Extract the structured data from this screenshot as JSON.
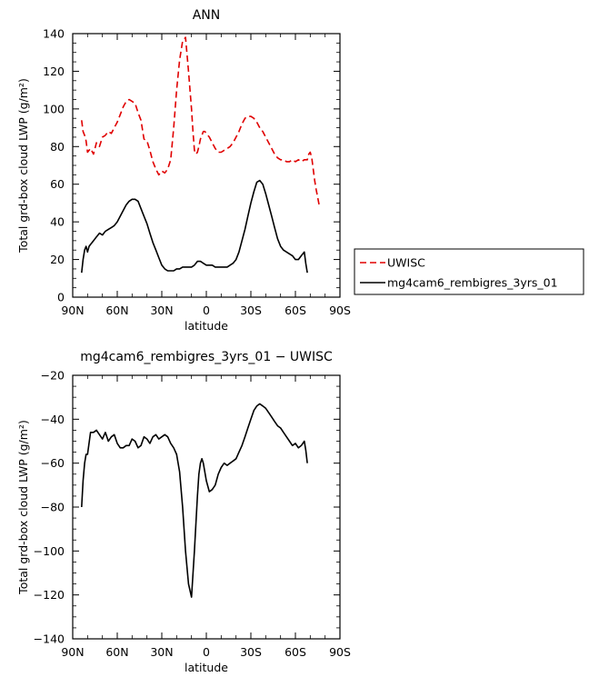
{
  "chart_data": [
    {
      "type": "line",
      "title": "ANN",
      "xlabel": "latitude",
      "ylabel": "Total grd-box cloud LWP (g/m²)",
      "xlim": [
        90,
        -90
      ],
      "ylim": [
        0,
        140
      ],
      "xticks": [
        90,
        60,
        30,
        0,
        -30,
        -60,
        -90
      ],
      "xtick_labels": [
        "90N",
        "60N",
        "30N",
        "0",
        "30S",
        "60S",
        "90S"
      ],
      "yticks": [
        0,
        20,
        40,
        60,
        80,
        100,
        120,
        140
      ],
      "ytick_labels": [
        "0",
        "20",
        "40",
        "60",
        "80",
        "100",
        "120",
        "140"
      ],
      "grid": false,
      "legend": "right",
      "series": [
        {
          "name": "UWISC",
          "color": "#e00000",
          "dash": true,
          "x": [
            84,
            83,
            82,
            81,
            80,
            78,
            76,
            74,
            72,
            70,
            68,
            66,
            64,
            62,
            60,
            58,
            56,
            54,
            52,
            50,
            48,
            46,
            44,
            42,
            40,
            38,
            36,
            34,
            32,
            30,
            28,
            26,
            24,
            22,
            20,
            18,
            16,
            14,
            12,
            10,
            9,
            8,
            7,
            6,
            5,
            4,
            3,
            2,
            1,
            0,
            -1,
            -2,
            -4,
            -6,
            -8,
            -10,
            -12,
            -14,
            -16,
            -18,
            -20,
            -22,
            -24,
            -26,
            -28,
            -30,
            -32,
            -34,
            -36,
            -38,
            -40,
            -42,
            -44,
            -46,
            -48,
            -50,
            -52,
            -54,
            -56,
            -58,
            -60,
            -62,
            -64,
            -66,
            -68,
            -69,
            -70,
            -71,
            -72,
            -73,
            -74,
            -75,
            -76
          ],
          "y": [
            94,
            88,
            86,
            83,
            77,
            79,
            76,
            82,
            80,
            85,
            86,
            88,
            87,
            90,
            93,
            97,
            101,
            104,
            105,
            104,
            103,
            98,
            94,
            84,
            83,
            78,
            72,
            68,
            65,
            67,
            66,
            68,
            73,
            90,
            110,
            126,
            136,
            138,
            120,
            100,
            88,
            78,
            76,
            77,
            80,
            84,
            86,
            88,
            88,
            87,
            86,
            85,
            82,
            79,
            77,
            77,
            78,
            79,
            80,
            82,
            85,
            88,
            92,
            95,
            96,
            96,
            95,
            93,
            90,
            88,
            85,
            82,
            79,
            76,
            74,
            73,
            73,
            72,
            72,
            73,
            72,
            73,
            72,
            73,
            73,
            76,
            77,
            74,
            68,
            62,
            57,
            53,
            49
          ]
        },
        {
          "name": "mg4cam6_rembigres_3yrs_01",
          "color": "#000000",
          "dash": false,
          "x": [
            84,
            83,
            82,
            81,
            80,
            79,
            78,
            76,
            74,
            72,
            70,
            68,
            66,
            64,
            62,
            60,
            58,
            56,
            54,
            52,
            50,
            48,
            46,
            44,
            42,
            40,
            38,
            36,
            34,
            32,
            30,
            28,
            26,
            24,
            22,
            20,
            18,
            16,
            14,
            12,
            10,
            8,
            6,
            4,
            2,
            0,
            -2,
            -4,
            -6,
            -8,
            -10,
            -12,
            -14,
            -16,
            -18,
            -20,
            -22,
            -24,
            -26,
            -28,
            -30,
            -32,
            -34,
            -36,
            -38,
            -40,
            -42,
            -44,
            -46,
            -48,
            -50,
            -52,
            -54,
            -56,
            -58,
            -60,
            -62,
            -64,
            -66,
            -67,
            -68
          ],
          "y": [
            13,
            20,
            25,
            27,
            24,
            27,
            28,
            30,
            32,
            34,
            33,
            35,
            36,
            37,
            38,
            40,
            43,
            46,
            49,
            51,
            52,
            52,
            51,
            47,
            43,
            39,
            34,
            29,
            25,
            21,
            17,
            15,
            14,
            14,
            14,
            15,
            15,
            16,
            16,
            16,
            16,
            17,
            19,
            19,
            18,
            17,
            17,
            17,
            16,
            16,
            16,
            16,
            16,
            17,
            18,
            20,
            24,
            30,
            36,
            43,
            50,
            56,
            61,
            62,
            60,
            55,
            49,
            43,
            37,
            31,
            27,
            25,
            24,
            23,
            22,
            20,
            20,
            22,
            24,
            18,
            13
          ]
        }
      ]
    },
    {
      "type": "line",
      "title": "mg4cam6_rembigres_3yrs_01 − UWISC",
      "xlabel": "latitude",
      "ylabel": "Total grd-box cloud LWP (g/m²)",
      "xlim": [
        90,
        -90
      ],
      "ylim": [
        -140,
        -20
      ],
      "xticks": [
        90,
        60,
        30,
        0,
        -30,
        -60,
        -90
      ],
      "xtick_labels": [
        "90N",
        "60N",
        "30N",
        "0",
        "30S",
        "60S",
        "90S"
      ],
      "yticks": [
        -140,
        -120,
        -100,
        -80,
        -60,
        -40,
        -20
      ],
      "ytick_labels": [
        "−140",
        "−120",
        "−100",
        "−80",
        "−60",
        "−40",
        "−20"
      ],
      "grid": false,
      "series": [
        {
          "color": "#000000",
          "dash": false,
          "x": [
            84,
            83,
            82,
            81,
            80,
            78,
            76,
            74,
            72,
            70,
            68,
            66,
            64,
            62,
            60,
            58,
            56,
            54,
            52,
            50,
            48,
            46,
            44,
            42,
            40,
            38,
            36,
            34,
            32,
            30,
            28,
            26,
            24,
            22,
            20,
            18,
            16,
            14,
            12,
            10,
            8,
            6,
            5,
            4,
            3,
            2,
            0,
            -2,
            -4,
            -6,
            -8,
            -10,
            -12,
            -14,
            -16,
            -18,
            -20,
            -22,
            -24,
            -26,
            -28,
            -30,
            -32,
            -34,
            -36,
            -38,
            -40,
            -42,
            -44,
            -46,
            -48,
            -50,
            -52,
            -54,
            -56,
            -58,
            -60,
            -62,
            -64,
            -66,
            -67,
            -68
          ],
          "y": [
            -80,
            -68,
            -60,
            -56,
            -56,
            -46,
            -46,
            -45,
            -47,
            -49,
            -46,
            -50,
            -48,
            -47,
            -51,
            -53,
            -53,
            -52,
            -52,
            -49,
            -50,
            -53,
            -52,
            -48,
            -49,
            -51,
            -48,
            -47,
            -49,
            -48,
            -47,
            -48,
            -51,
            -53,
            -56,
            -64,
            -80,
            -100,
            -115,
            -121,
            -100,
            -75,
            -65,
            -60,
            -58,
            -60,
            -68,
            -73,
            -72,
            -70,
            -65,
            -62,
            -60,
            -61,
            -60,
            -59,
            -58,
            -55,
            -52,
            -48,
            -44,
            -40,
            -36,
            -34,
            -33,
            -34,
            -35,
            -37,
            -39,
            -41,
            -43,
            -44,
            -46,
            -48,
            -50,
            -52,
            -51,
            -53,
            -52,
            -50,
            -54,
            -60
          ]
        }
      ]
    }
  ]
}
